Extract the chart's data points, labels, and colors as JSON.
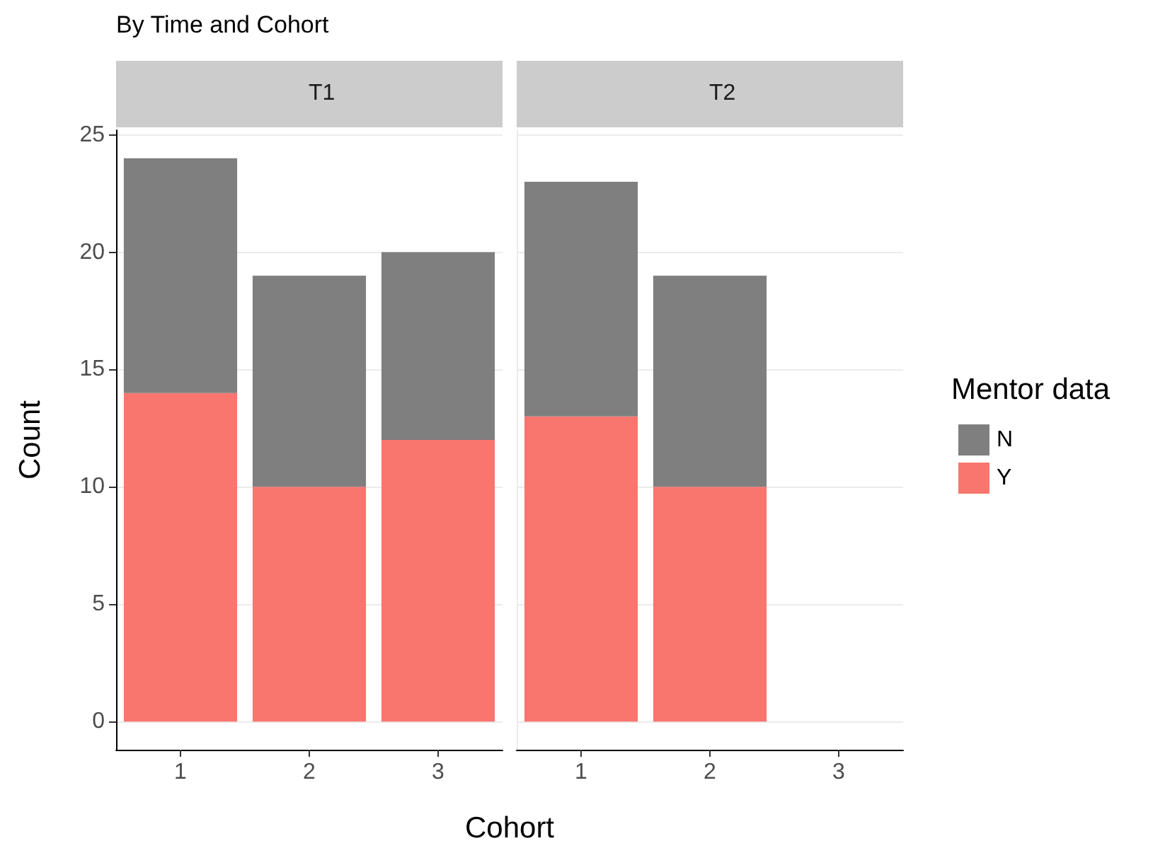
{
  "chart_data": [
    {
      "type": "bar",
      "title": "By Time and Cohort",
      "subtitle": "T1",
      "xlabel": "Cohort",
      "ylabel": "Count",
      "categories": [
        "1",
        "2",
        "3"
      ],
      "stacked": true,
      "series": [
        {
          "color": "#f8766d",
          "values": [
            14,
            10,
            12
          ]
        },
        {
          "color": "#7f7f7f",
          "values": [
            10,
            9,
            8
          ]
        }
      ],
      "ylim": [
        -1.2,
        25.2
      ],
      "yticks": [
        0,
        5,
        10,
        15,
        20,
        25
      ],
      "grid": "y",
      "legend": false
    },
    {
      "type": "bar",
      "subtitle": "T2",
      "categories": [
        "1",
        "2",
        "3"
      ],
      "stacked": true,
      "series": [
        {
          "name": "Y",
          "color": "#f8766d",
          "values": [
            13,
            10,
            null
          ]
        },
        {
          "name": "N",
          "color": "#7f7f7f",
          "values": [
            10,
            9,
            null
          ]
        }
      ],
      "ylim": [
        -1.2,
        25.2
      ],
      "yticks": [
        0,
        5,
        10,
        15,
        20,
        25
      ],
      "grid": "y",
      "legend": "right",
      "legend_title": "Mentor data",
      "tick_labels": "x"
    }
  ]
}
